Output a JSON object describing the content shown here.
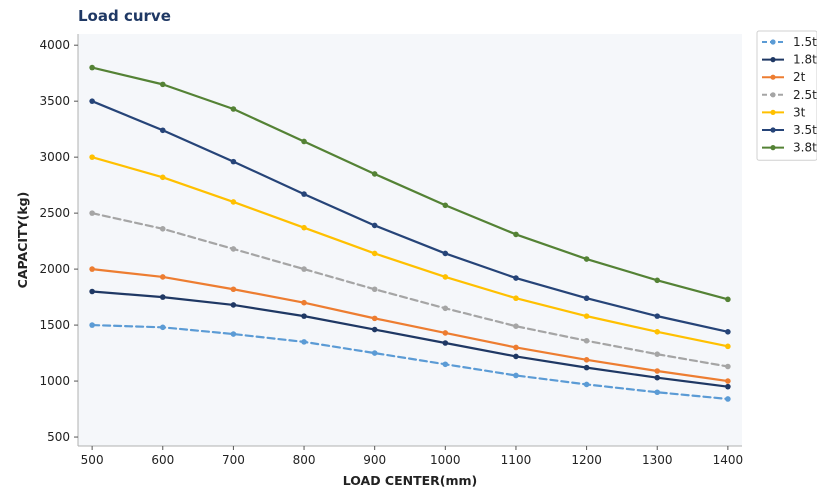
{
  "chart_data": {
    "type": "line",
    "title": "Load curve",
    "xlabel": "LOAD CENTER(mm)",
    "ylabel": "CAPACITY(kg)",
    "xlim": [
      480,
      1420
    ],
    "ylim": [
      420,
      4100
    ],
    "x_ticks": [
      500,
      600,
      700,
      800,
      900,
      1000,
      1100,
      1200,
      1300,
      1400
    ],
    "y_ticks": [
      500,
      1000,
      1500,
      2000,
      2500,
      3000,
      3500,
      4000
    ],
    "grid": false,
    "legend_position": "right",
    "x": [
      500,
      600,
      700,
      800,
      900,
      1000,
      1100,
      1200,
      1300,
      1400
    ],
    "series": [
      {
        "name": "1.5t",
        "color": "#5b9bd5",
        "dashed": true,
        "values": [
          1500,
          1480,
          1420,
          1350,
          1250,
          1150,
          1050,
          970,
          900,
          840
        ]
      },
      {
        "name": "1.8t",
        "color": "#1f3864",
        "dashed": false,
        "values": [
          1800,
          1750,
          1680,
          1580,
          1460,
          1340,
          1220,
          1120,
          1030,
          950
        ]
      },
      {
        "name": "2t",
        "color": "#ed7d31",
        "dashed": false,
        "values": [
          2000,
          1930,
          1820,
          1700,
          1560,
          1430,
          1300,
          1190,
          1090,
          1000
        ]
      },
      {
        "name": "2.5t",
        "color": "#a5a5a5",
        "dashed": true,
        "values": [
          2500,
          2360,
          2180,
          2000,
          1820,
          1650,
          1490,
          1360,
          1240,
          1130
        ]
      },
      {
        "name": "3t",
        "color": "#ffc000",
        "dashed": false,
        "values": [
          3000,
          2820,
          2600,
          2370,
          2140,
          1930,
          1740,
          1580,
          1440,
          1310
        ]
      },
      {
        "name": "3.5t",
        "color": "#264478",
        "dashed": false,
        "values": [
          3500,
          3240,
          2960,
          2670,
          2390,
          2140,
          1920,
          1740,
          1580,
          1440
        ]
      },
      {
        "name": "3.8t",
        "color": "#548235",
        "dashed": false,
        "values": [
          3800,
          3650,
          3430,
          3140,
          2850,
          2570,
          2310,
          2090,
          1900,
          1730
        ]
      }
    ]
  },
  "colors": {
    "plot_background": "#f5f7fa",
    "axis": "#b0b0b0",
    "title": "#1f3864"
  }
}
